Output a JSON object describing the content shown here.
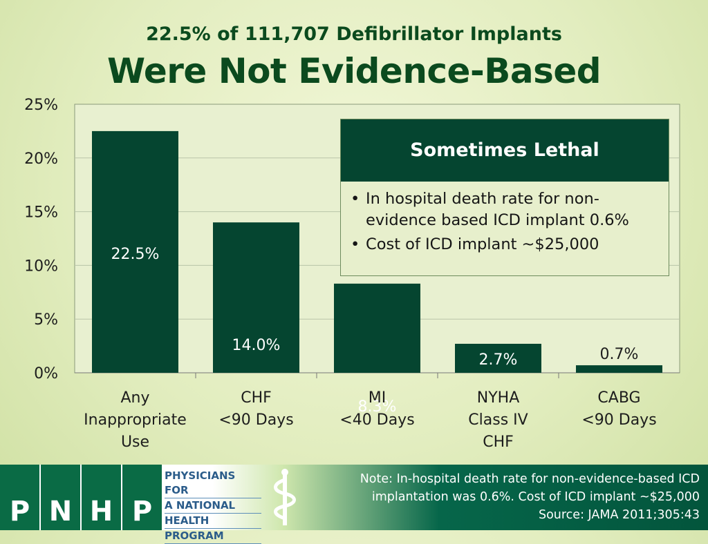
{
  "header": {
    "subtitle": "22.5% of 111,707 Defibrillator Implants",
    "title": "Were Not Evidence-Based"
  },
  "chart_data": {
    "type": "bar",
    "categories": [
      [
        "Any",
        "Inappropriate",
        "Use"
      ],
      [
        "CHF",
        "<90 Days"
      ],
      [
        "MI",
        "<40 Days"
      ],
      [
        "NYHA",
        "Class IV",
        "CHF"
      ],
      [
        "CABG",
        "<90 Days"
      ]
    ],
    "values": [
      22.5,
      14.0,
      8.3,
      2.7,
      0.7
    ],
    "data_labels": [
      "22.5%",
      "14.0%",
      "8.3%",
      "2.7%",
      "0.7%"
    ],
    "yticks": [
      "0%",
      "5%",
      "10%",
      "15%",
      "20%",
      "25%"
    ],
    "ylim": [
      0,
      25
    ],
    "grid": true,
    "bar_color": "#054530"
  },
  "callout": {
    "heading": "Sometimes Lethal",
    "bullets": [
      [
        "In hospital death rate for non-",
        "evidence based ICD implant 0.6%"
      ],
      [
        "Cost of ICD implant ~$25,000"
      ]
    ]
  },
  "footer": {
    "logo_letters": [
      "P",
      "N",
      "H",
      "P"
    ],
    "logo_text": [
      "PHYSICIANS FOR",
      "A NATIONAL",
      "HEALTH",
      "PROGRAM"
    ],
    "note_lines": [
      "Note: In-hospital death rate for non-evidence-based ICD",
      "implantation was 0.6%. Cost of ICD implant ~$25,000",
      "Source: JAMA 2011;305:43"
    ]
  }
}
